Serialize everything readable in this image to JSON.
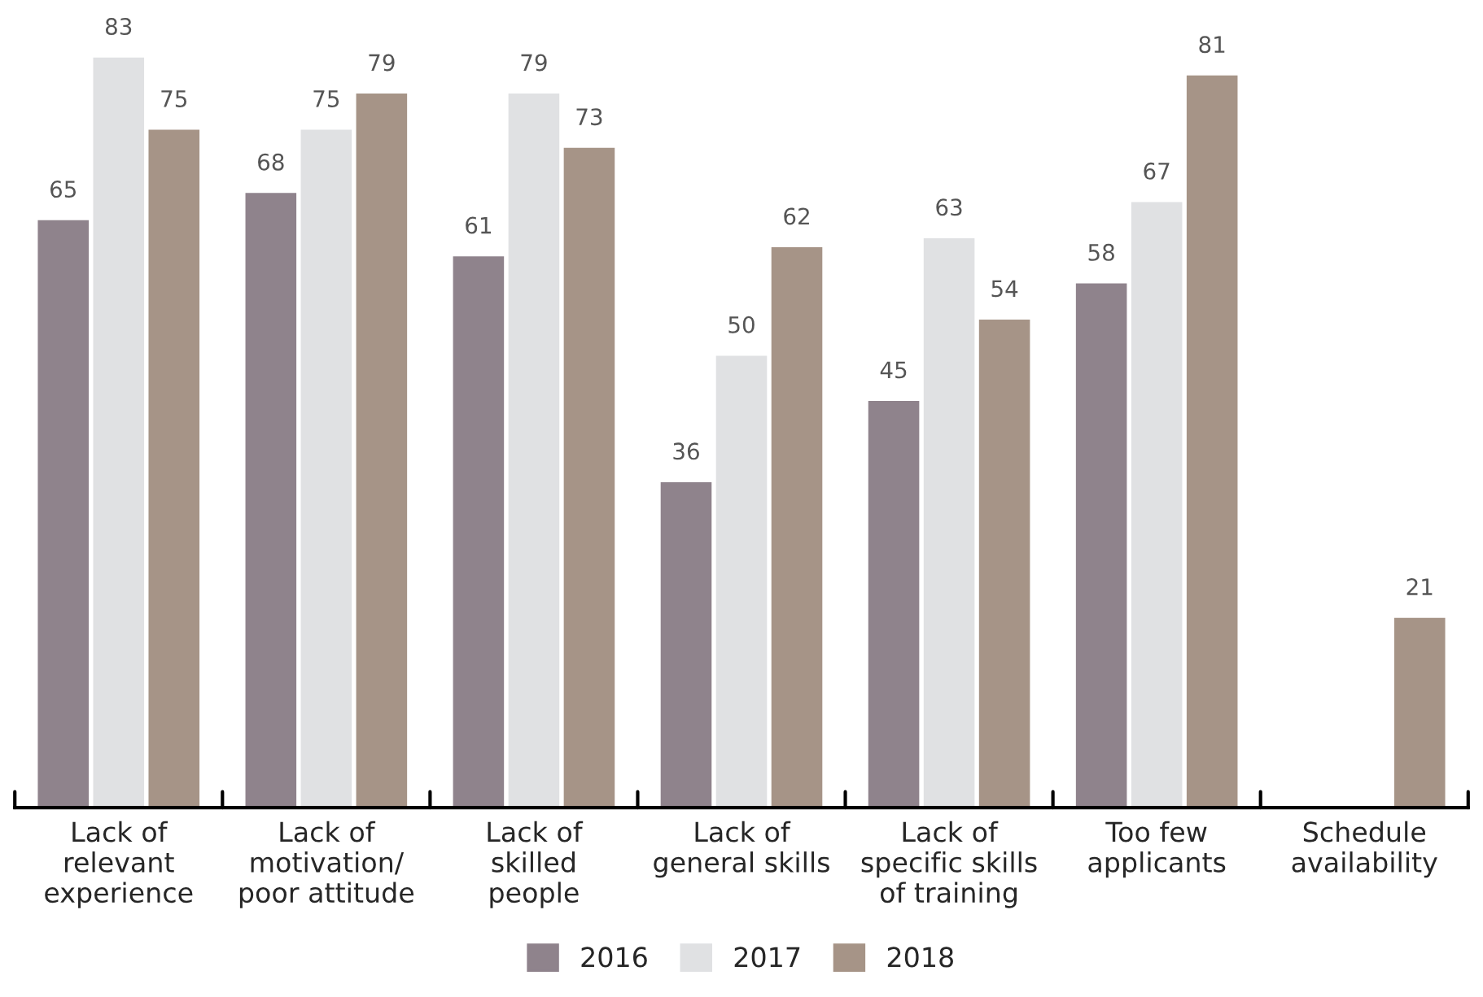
{
  "chart_data": {
    "type": "bar",
    "categories": [
      "Lack of\nrelevant\nexperience",
      "Lack of\nmotivation/\npoor attitude",
      "Lack of\nskilled\npeople",
      "Lack of\ngeneral skills",
      "Lack of\nspecific skills\nof training",
      "Too few\napplicants",
      "Schedule\navailability"
    ],
    "series": [
      {
        "name": "2016",
        "color": "#8f838c",
        "values": [
          65,
          68,
          61,
          36,
          45,
          58,
          0
        ],
        "value_labels": [
          "65",
          "68",
          "61",
          "36",
          "45",
          "58",
          null
        ]
      },
      {
        "name": "2017",
        "color": "#e0e1e3",
        "values": [
          83,
          75,
          79,
          50,
          63,
          67,
          0
        ],
        "value_labels": [
          "83",
          "75",
          "79",
          "50",
          "63",
          "67",
          null
        ]
      },
      {
        "name": "2018",
        "color": "#a69487",
        "values": [
          75,
          79,
          73,
          62,
          54,
          81,
          21
        ],
        "value_labels": [
          "75",
          "79",
          "73",
          "62",
          "54",
          "81",
          "21"
        ]
      }
    ],
    "legend": "bottom",
    "grid": false
  }
}
